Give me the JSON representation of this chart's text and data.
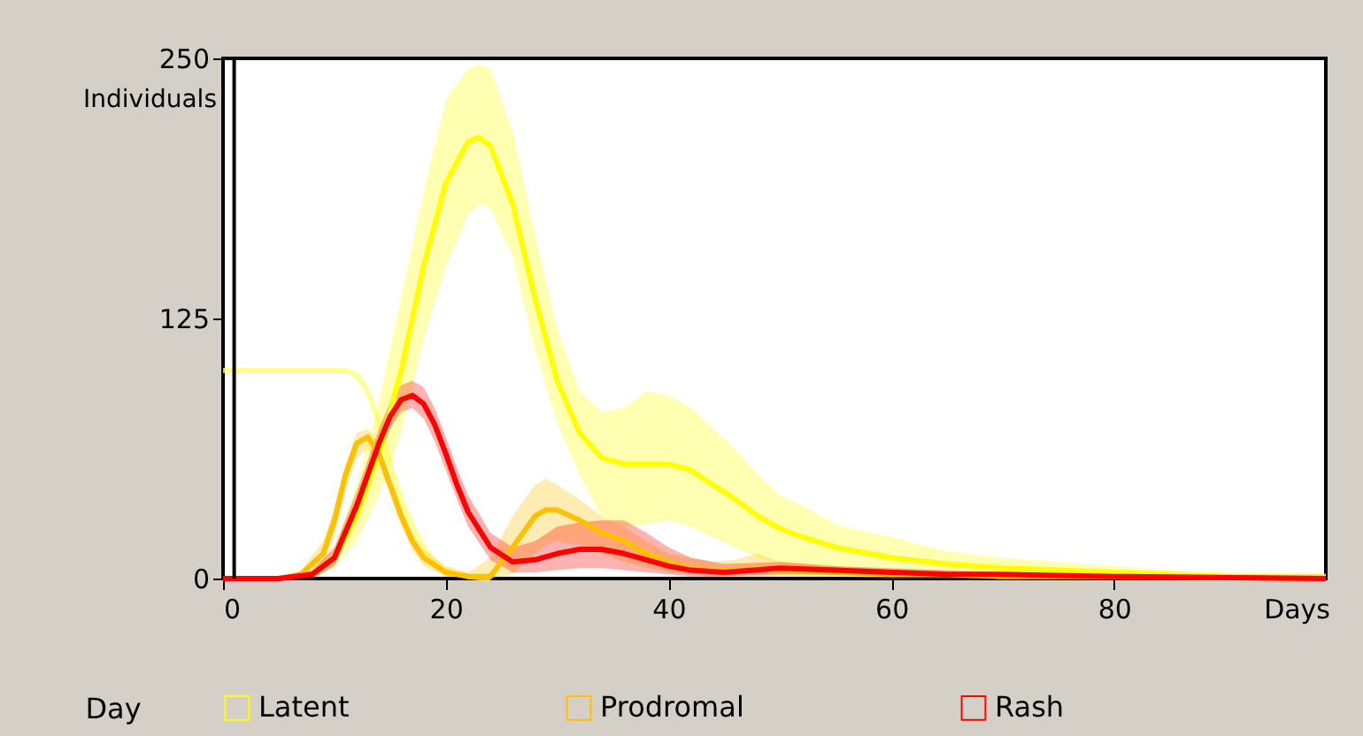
{
  "chart_data": {
    "type": "line",
    "xlabel": "Days",
    "ylabel": "Individuals",
    "xlim": [
      0,
      99
    ],
    "ylim": [
      0,
      250
    ],
    "xticks": [
      0,
      20,
      40,
      60,
      80
    ],
    "yticks": [
      0,
      125,
      250
    ],
    "grid": false,
    "legend": "bottom",
    "marker": "none",
    "line_style": "solid",
    "annotations": [
      "Day"
    ],
    "ref_lines": [
      {
        "axis": "x",
        "value": 1,
        "color": "#000000"
      }
    ],
    "series": [
      {
        "color": "#ffff80",
        "x": [
          0,
          11,
          12,
          13,
          14,
          15,
          16,
          17,
          18,
          19,
          20,
          22,
          24
        ],
        "values": [
          100,
          100,
          98,
          90,
          75,
          55,
          38,
          25,
          15,
          8,
          4,
          1,
          0
        ]
      },
      {
        "name": "Latent",
        "color": "#ffff00",
        "x": [
          8,
          10,
          12,
          14,
          16,
          18,
          20,
          22,
          23,
          24,
          26,
          28,
          30,
          32,
          34,
          36,
          38,
          40,
          42,
          44,
          46,
          48,
          50,
          52,
          55,
          58,
          60,
          65,
          70,
          75,
          80,
          85,
          90,
          99
        ],
        "values": [
          2,
          10,
          30,
          60,
          100,
          150,
          190,
          210,
          212,
          208,
          180,
          135,
          95,
          70,
          58,
          55,
          55,
          55,
          52,
          45,
          38,
          30,
          24,
          20,
          15,
          12,
          10,
          7,
          5,
          4,
          3,
          2,
          1,
          1
        ],
        "upper": [
          3,
          15,
          45,
          85,
          135,
          185,
          230,
          245,
          247,
          245,
          215,
          165,
          120,
          90,
          80,
          82,
          90,
          88,
          82,
          72,
          62,
          50,
          40,
          35,
          26,
          22,
          20,
          13,
          10,
          8,
          6,
          4,
          3,
          2
        ],
        "lower": [
          0,
          5,
          18,
          40,
          70,
          115,
          150,
          175,
          180,
          178,
          155,
          110,
          75,
          50,
          30,
          25,
          26,
          28,
          25,
          20,
          15,
          10,
          7,
          5,
          4,
          3,
          2,
          1,
          1,
          0,
          0,
          0,
          0,
          0
        ]
      },
      {
        "name": "Prodromal",
        "color": "#ffc000",
        "x": [
          0,
          5,
          7,
          9,
          10,
          11,
          12,
          13,
          14,
          15,
          16,
          17,
          18,
          20,
          22,
          24,
          26,
          28,
          29,
          30,
          32,
          34,
          36,
          38,
          40,
          42,
          44,
          46,
          48,
          50,
          55,
          60,
          65,
          70,
          80,
          99
        ],
        "values": [
          0,
          0,
          2,
          12,
          28,
          50,
          65,
          68,
          60,
          45,
          30,
          18,
          10,
          3,
          1,
          1,
          15,
          30,
          33,
          33,
          28,
          22,
          18,
          12,
          8,
          5,
          4,
          4,
          5,
          4,
          3,
          2,
          2,
          1,
          1,
          0
        ],
        "upper": [
          0,
          0,
          4,
          18,
          35,
          55,
          70,
          72,
          65,
          50,
          35,
          22,
          14,
          6,
          3,
          10,
          30,
          45,
          48,
          45,
          38,
          30,
          25,
          18,
          12,
          10,
          8,
          9,
          12,
          8,
          6,
          4,
          3,
          3,
          2,
          1
        ],
        "lower": [
          0,
          0,
          0,
          6,
          20,
          42,
          58,
          62,
          55,
          40,
          25,
          14,
          6,
          1,
          0,
          0,
          2,
          12,
          16,
          18,
          16,
          12,
          8,
          5,
          3,
          2,
          1,
          1,
          1,
          1,
          1,
          0,
          0,
          0,
          0,
          0
        ]
      },
      {
        "name": "Rash",
        "color": "#ff0000",
        "x": [
          0,
          5,
          8,
          10,
          12,
          14,
          15,
          16,
          17,
          18,
          19,
          20,
          21,
          22,
          24,
          26,
          28,
          30,
          32,
          34,
          36,
          38,
          40,
          42,
          45,
          50,
          55,
          60,
          65,
          70,
          80,
          99
        ],
        "values": [
          0,
          0,
          2,
          10,
          35,
          65,
          78,
          86,
          88,
          84,
          74,
          60,
          45,
          32,
          15,
          8,
          9,
          12,
          14,
          14,
          12,
          9,
          6,
          4,
          3,
          5,
          4,
          3,
          2,
          2,
          1,
          0
        ],
        "upper": [
          0,
          0,
          4,
          15,
          42,
          72,
          85,
          93,
          95,
          92,
          82,
          68,
          53,
          40,
          22,
          15,
          18,
          25,
          27,
          28,
          28,
          22,
          15,
          10,
          7,
          8,
          6,
          5,
          4,
          3,
          2,
          1
        ],
        "lower": [
          0,
          0,
          0,
          6,
          28,
          58,
          72,
          80,
          82,
          77,
          66,
          52,
          38,
          25,
          9,
          3,
          3,
          4,
          5,
          5,
          4,
          3,
          2,
          1,
          1,
          2,
          2,
          1,
          1,
          1,
          0,
          0
        ]
      }
    ]
  }
}
